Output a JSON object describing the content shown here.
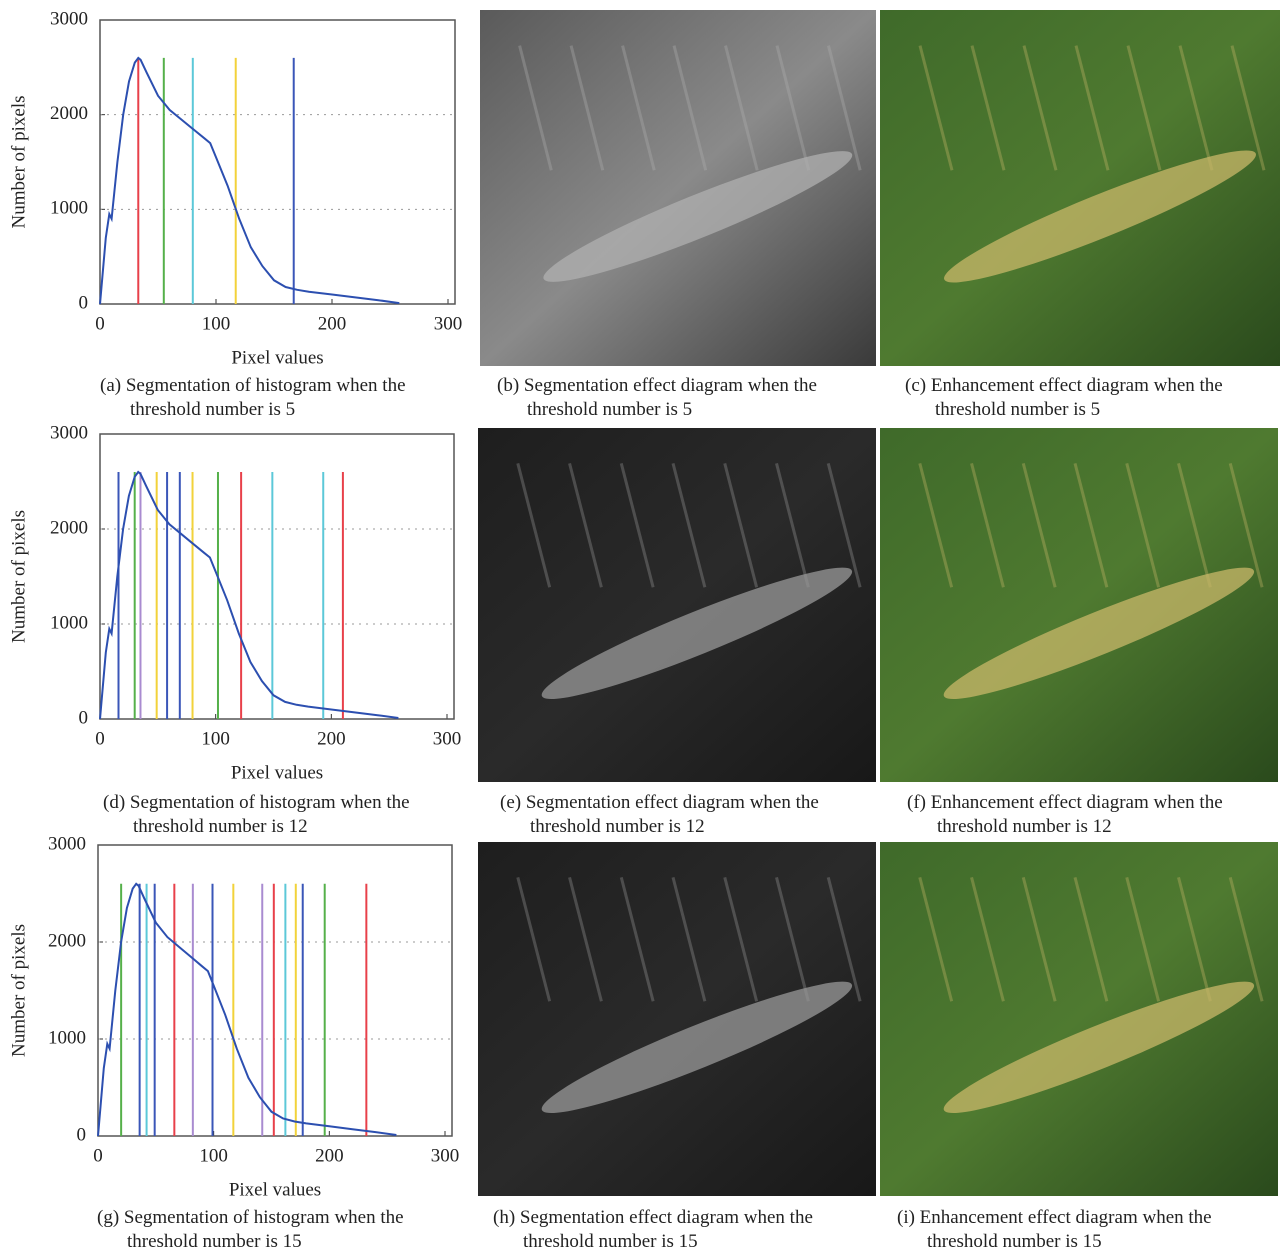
{
  "chart_data": [
    {
      "type": "line",
      "caption": "(a) Segmentation of histogram when the threshold number is 5",
      "xlabel": "Pixel values",
      "ylabel": "Number of pixels",
      "xlim": [
        0,
        300
      ],
      "ylim": [
        0,
        3000
      ],
      "xticks": [
        0,
        100,
        200,
        300
      ],
      "yticks": [
        0,
        1000,
        2000,
        3000
      ],
      "grid": true,
      "color": "#2c4fb0",
      "x": [
        0,
        5,
        8,
        10,
        15,
        20,
        25,
        30,
        33,
        35,
        40,
        50,
        60,
        70,
        80,
        90,
        95,
        100,
        110,
        120,
        130,
        140,
        150,
        160,
        170,
        180,
        200,
        220,
        240,
        258
      ],
      "values": [
        0,
        700,
        950,
        900,
        1500,
        2000,
        2350,
        2550,
        2600,
        2580,
        2450,
        2200,
        2050,
        1950,
        1850,
        1750,
        1700,
        1550,
        1250,
        900,
        600,
        400,
        250,
        180,
        150,
        130,
        100,
        70,
        40,
        10
      ],
      "thresholds": [
        {
          "x": 33,
          "y": 2600,
          "color": "#e8404a"
        },
        {
          "x": 55,
          "y": 2600,
          "color": "#55b04a"
        },
        {
          "x": 80,
          "y": 2600,
          "color": "#5cc8d8"
        },
        {
          "x": 117,
          "y": 2600,
          "color": "#f2d23a"
        },
        {
          "x": 167,
          "y": 2600,
          "color": "#3a56b8"
        }
      ]
    },
    {
      "type": "line",
      "caption": "(d) Segmentation of histogram when the threshold number is 12",
      "xlabel": "Pixel values",
      "ylabel": "Number of pixels",
      "xlim": [
        0,
        300
      ],
      "ylim": [
        0,
        3000
      ],
      "xticks": [
        0,
        100,
        200,
        300
      ],
      "yticks": [
        0,
        1000,
        2000,
        3000
      ],
      "grid": true,
      "color": "#2c4fb0",
      "x": [
        0,
        5,
        8,
        10,
        15,
        20,
        25,
        30,
        33,
        35,
        40,
        50,
        60,
        70,
        80,
        90,
        95,
        100,
        110,
        120,
        130,
        140,
        150,
        160,
        170,
        180,
        200,
        220,
        240,
        258
      ],
      "values": [
        0,
        700,
        950,
        900,
        1500,
        2000,
        2350,
        2550,
        2600,
        2580,
        2450,
        2200,
        2050,
        1950,
        1850,
        1750,
        1700,
        1550,
        1250,
        900,
        600,
        400,
        250,
        180,
        150,
        130,
        100,
        70,
        40,
        10
      ],
      "thresholds": [
        {
          "x": 16,
          "y": 2600,
          "color": "#3a56b8"
        },
        {
          "x": 30,
          "y": 2600,
          "color": "#55b04a"
        },
        {
          "x": 35,
          "y": 2600,
          "color": "#a98bd0"
        },
        {
          "x": 49,
          "y": 2600,
          "color": "#f2d23a"
        },
        {
          "x": 58,
          "y": 2600,
          "color": "#3a56b8"
        },
        {
          "x": 69,
          "y": 2600,
          "color": "#3a56b8"
        },
        {
          "x": 80,
          "y": 2600,
          "color": "#f2d23a"
        },
        {
          "x": 102,
          "y": 2600,
          "color": "#55b04a"
        },
        {
          "x": 122,
          "y": 2600,
          "color": "#e8404a"
        },
        {
          "x": 149,
          "y": 2600,
          "color": "#5cc8d8"
        },
        {
          "x": 193,
          "y": 2600,
          "color": "#5cc8d8"
        },
        {
          "x": 210,
          "y": 2600,
          "color": "#e8404a"
        }
      ]
    },
    {
      "type": "line",
      "caption": "(g) Segmentation of histogram when the threshold number is 15",
      "xlabel": "Pixel values",
      "ylabel": "Number of pixels",
      "xlim": [
        0,
        300
      ],
      "ylim": [
        0,
        3000
      ],
      "xticks": [
        0,
        100,
        200,
        300
      ],
      "yticks": [
        0,
        1000,
        2000,
        3000
      ],
      "grid": true,
      "color": "#2c4fb0",
      "x": [
        0,
        5,
        8,
        10,
        15,
        20,
        25,
        30,
        33,
        35,
        40,
        50,
        60,
        70,
        80,
        90,
        95,
        100,
        110,
        120,
        130,
        140,
        150,
        160,
        170,
        180,
        200,
        220,
        240,
        258
      ],
      "values": [
        0,
        700,
        950,
        900,
        1500,
        2000,
        2350,
        2550,
        2600,
        2580,
        2450,
        2200,
        2050,
        1950,
        1850,
        1750,
        1700,
        1550,
        1250,
        900,
        600,
        400,
        250,
        180,
        150,
        130,
        100,
        70,
        40,
        10
      ],
      "thresholds": [
        {
          "x": 20,
          "y": 2600,
          "color": "#55b04a"
        },
        {
          "x": 36,
          "y": 2600,
          "color": "#3a56b8"
        },
        {
          "x": 42,
          "y": 2600,
          "color": "#5cc8d8"
        },
        {
          "x": 49,
          "y": 2600,
          "color": "#3a56b8"
        },
        {
          "x": 66,
          "y": 2600,
          "color": "#e8404a"
        },
        {
          "x": 82,
          "y": 2600,
          "color": "#a98bd0"
        },
        {
          "x": 99,
          "y": 2600,
          "color": "#3a56b8"
        },
        {
          "x": 117,
          "y": 2600,
          "color": "#f2d23a"
        },
        {
          "x": 142,
          "y": 2600,
          "color": "#a98bd0"
        },
        {
          "x": 152,
          "y": 2600,
          "color": "#e8404a"
        },
        {
          "x": 162,
          "y": 2600,
          "color": "#5cc8d8"
        },
        {
          "x": 171,
          "y": 2600,
          "color": "#f2d23a"
        },
        {
          "x": 177,
          "y": 2600,
          "color": "#3a56b8"
        },
        {
          "x": 196,
          "y": 2600,
          "color": "#55b04a"
        },
        {
          "x": 232,
          "y": 2600,
          "color": "#e8404a"
        }
      ]
    }
  ],
  "panels": [
    {
      "caption": "(b) Segmentation effect diagram when the threshold number is 5"
    },
    {
      "caption": "(c) Enhancement effect diagram when the threshold number is 5"
    },
    {
      "caption": "(e) Segmentation effect diagram when the threshold number is 12"
    },
    {
      "caption": "(f) Enhancement effect diagram when the threshold number is 12"
    },
    {
      "caption": "(h) Segmentation effect diagram when the threshold number is 15"
    },
    {
      "caption": "(i) Enhancement effect diagram when the threshold number is 15"
    }
  ]
}
